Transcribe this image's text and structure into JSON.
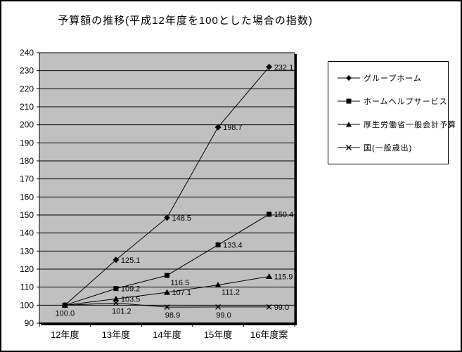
{
  "title": "予算額の推移(平成12年度を100とした場合の指数)",
  "chart_data": {
    "type": "line",
    "title": "予算額の推移(平成12年度を100とした場合の指数)",
    "categories": [
      "12年度",
      "13年度",
      "14年度",
      "15年度",
      "16年度案"
    ],
    "series": [
      {
        "name": "グループホーム",
        "marker": "diamond",
        "values": [
          100.0,
          125.1,
          148.5,
          198.7,
          232.1
        ],
        "labels": [
          "100.0",
          "125.1",
          "148.5",
          "198.7",
          "232.1"
        ],
        "label_pos": [
          "below-center",
          "right",
          "right",
          "right",
          "right"
        ]
      },
      {
        "name": "ホームヘルプサービス",
        "marker": "square",
        "values": [
          100.0,
          109.2,
          116.5,
          133.4,
          150.4
        ],
        "labels": [
          "",
          "109.2",
          "116.5",
          "133.4",
          "150.4"
        ],
        "label_pos": [
          "",
          "right",
          "below-right",
          "right",
          "right"
        ]
      },
      {
        "name": "厚生労働省一般会計予算",
        "marker": "triangle",
        "values": [
          100.0,
          103.5,
          107.1,
          111.2,
          115.9
        ],
        "labels": [
          "",
          "103.5",
          "107.1",
          "111.2",
          "115.9"
        ],
        "label_pos": [
          "",
          "right",
          "right",
          "below-right",
          "right"
        ]
      },
      {
        "name": "国(一般歳出)",
        "marker": "x",
        "values": [
          100.0,
          101.2,
          98.9,
          99.0,
          99.0
        ],
        "labels": [
          "",
          "101.2",
          "98.9",
          "99.0",
          "99.0"
        ],
        "label_pos": [
          "",
          "below",
          "below",
          "below",
          "right"
        ]
      }
    ],
    "ylim": [
      90,
      240
    ],
    "ytick_step": 10,
    "grid": "horizontal",
    "legend_position": "right",
    "colors": {
      "line": "#000000",
      "plot_bg": "#c0c0c0",
      "plot_border": "#000000",
      "shadow": "#000000",
      "text": "#000000"
    }
  }
}
